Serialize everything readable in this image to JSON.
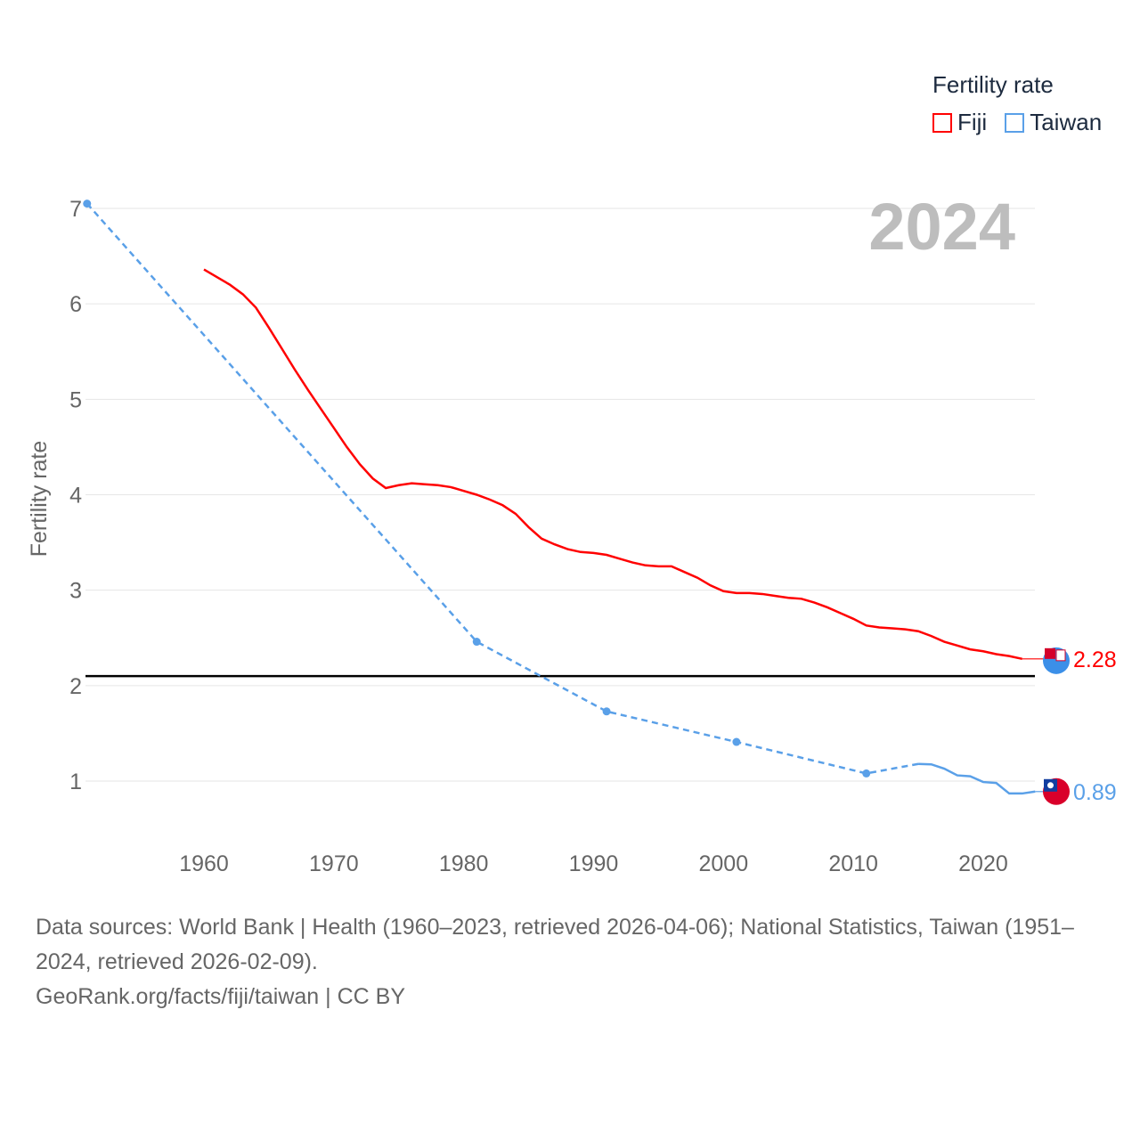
{
  "chart_data": {
    "type": "line",
    "title": "",
    "year_label": "2024",
    "ylabel": "Fertility rate",
    "xlabel": "",
    "xlim": [
      1951,
      2024
    ],
    "ylim": [
      0.5,
      7
    ],
    "yticks": [
      1,
      2,
      3,
      4,
      5,
      6,
      7
    ],
    "xticks": [
      1960,
      1970,
      1980,
      1990,
      2000,
      2010,
      2020
    ],
    "grid": true,
    "reference_line": 2.1,
    "legend": {
      "title": "Fertility rate",
      "position": "top-right",
      "entries": [
        "Fiji",
        "Taiwan"
      ]
    },
    "series": [
      {
        "name": "Fiji",
        "color": "#ff0000",
        "end_label": "2.28",
        "x": [
          1960,
          1962,
          1963,
          1964,
          1965,
          1966,
          1967,
          1968,
          1969,
          1970,
          1971,
          1972,
          1973,
          1974,
          1975,
          1976,
          1977,
          1978,
          1979,
          1980,
          1981,
          1982,
          1983,
          1984,
          1985,
          1986,
          1987,
          1988,
          1989,
          1990,
          1991,
          1992,
          1993,
          1994,
          1995,
          1996,
          1997,
          1998,
          1999,
          2000,
          2001,
          2002,
          2003,
          2004,
          2005,
          2006,
          2007,
          2008,
          2009,
          2010,
          2011,
          2012,
          2013,
          2014,
          2015,
          2016,
          2017,
          2018,
          2019,
          2020,
          2021,
          2022,
          2023
        ],
        "y": [
          6.36,
          6.2,
          6.1,
          5.96,
          5.75,
          5.53,
          5.31,
          5.1,
          4.9,
          4.7,
          4.5,
          4.32,
          4.17,
          4.07,
          4.1,
          4.12,
          4.11,
          4.1,
          4.08,
          4.04,
          4.0,
          3.95,
          3.89,
          3.8,
          3.66,
          3.54,
          3.48,
          3.43,
          3.4,
          3.39,
          3.37,
          3.33,
          3.29,
          3.26,
          3.25,
          3.25,
          3.19,
          3.13,
          3.05,
          2.99,
          2.97,
          2.97,
          2.96,
          2.94,
          2.92,
          2.91,
          2.87,
          2.82,
          2.76,
          2.7,
          2.63,
          2.61,
          2.6,
          2.59,
          2.57,
          2.52,
          2.46,
          2.42,
          2.38,
          2.36,
          2.33,
          2.31,
          2.28
        ]
      },
      {
        "name": "Taiwan",
        "color": "#5aa0e8",
        "end_label": "0.89",
        "x": [
          1951,
          1981,
          1991,
          2001,
          2011,
          2015,
          2016,
          2017,
          2018,
          2019,
          2020,
          2021,
          2022,
          2023,
          2024
        ],
        "y": [
          7.05,
          2.46,
          1.73,
          1.41,
          1.08,
          1.18,
          1.175,
          1.13,
          1.06,
          1.05,
          0.99,
          0.98,
          0.87,
          0.87,
          0.89
        ],
        "sparse_points": [
          1951,
          1981,
          1991,
          2001,
          2011
        ]
      }
    ]
  },
  "footer": {
    "sources": "Data sources: World Bank | Health (1960–2023, retrieved 2026-04-06); National Statistics, Taiwan (1951–2024, retrieved 2026-02-09).",
    "credit": "GeoRank.org/facts/fiji/taiwan | CC BY"
  }
}
